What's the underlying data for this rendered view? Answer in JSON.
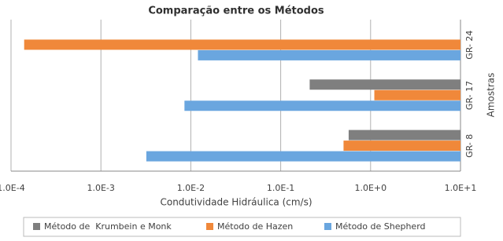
{
  "chart_data": {
    "type": "bar",
    "orientation": "horizontal",
    "title": "Comparação entre os Métodos",
    "x_label": "Condutividade Hidráulica (cm/s)",
    "y_label": "Amostras",
    "categories": [
      "GR- 24",
      "GR- 17",
      "GR- 8"
    ],
    "series": [
      {
        "name": "Método de  Krumbein e Monk",
        "color": "#7f7f7f",
        "values": [
          null,
          0.21,
          0.57
        ]
      },
      {
        "name": "Método de Hazen",
        "color": "#f0883a",
        "values": [
          0.00014,
          1.1,
          0.5
        ]
      },
      {
        "name": "Método de Shepherd",
        "color": "#6aa6df",
        "values": [
          0.012,
          0.0085,
          0.0032
        ]
      }
    ],
    "x_scale": "log",
    "xlim": [
      0.0001,
      10
    ],
    "xticks": [
      {
        "value": 0.0001,
        "label": "1.0E-4"
      },
      {
        "value": 0.001,
        "label": "1.0E-3"
      },
      {
        "value": 0.01,
        "label": "1.0E-2"
      },
      {
        "value": 0.1,
        "label": "1.0E-1"
      },
      {
        "value": 1,
        "label": "1.0E+0"
      },
      {
        "value": 10,
        "label": "1.0E+1"
      }
    ],
    "grid": true,
    "legend": "bottom"
  }
}
